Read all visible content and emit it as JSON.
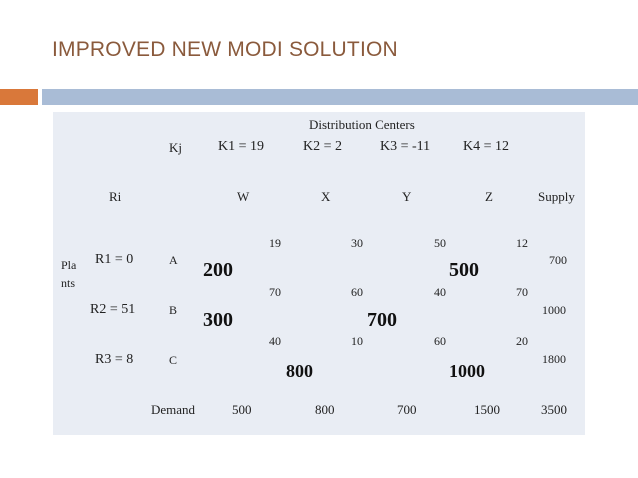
{
  "title": "IMPROVED NEW MODI SOLUTION",
  "colors": {
    "title": "#8a5a3c",
    "accent_orange": "#d9783a",
    "accent_blue": "#a9bcd6",
    "panel": "#e9edf4"
  },
  "table": {
    "header_distribution": "Distribution Centers",
    "kj_label": "Kj",
    "k_values": [
      "K1 = 19",
      "K2 = 2",
      "K3 = -11",
      "K4 = 12"
    ],
    "ri_label": "Ri",
    "columns": [
      "W",
      "X",
      "Y",
      "Z"
    ],
    "supply_label": "Supply",
    "plants_label_1": "Pla",
    "plants_label_2": "nts",
    "rows": [
      {
        "r": "R1 = 0",
        "plant": "A",
        "costs": [
          "19",
          "30",
          "50",
          "12"
        ],
        "supply": "700",
        "alloc1": "200",
        "alloc2": "500"
      },
      {
        "r": "R2 = 51",
        "plant": "B",
        "costs": [
          "70",
          "60",
          "40",
          "70"
        ],
        "supply": "1000",
        "alloc1": "300",
        "alloc2": "700"
      },
      {
        "r": "R3 = 8",
        "plant": "C",
        "costs": [
          "40",
          "10",
          "60",
          "20"
        ],
        "supply": "1800",
        "alloc1": "800",
        "alloc2": "1000"
      }
    ],
    "demand_label": "Demand",
    "demand": [
      "500",
      "800",
      "700",
      "1500"
    ],
    "total": "3500"
  }
}
